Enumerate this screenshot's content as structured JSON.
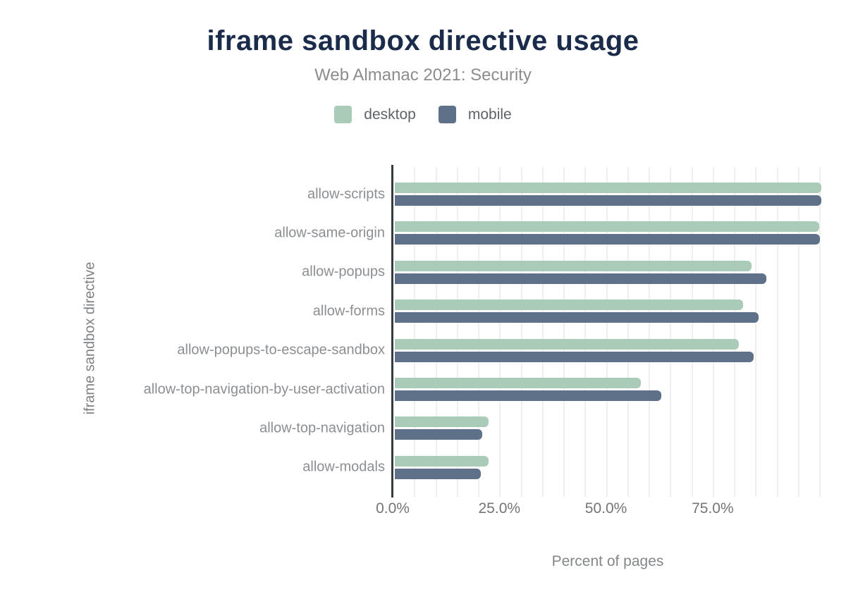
{
  "chart_data": {
    "type": "bar",
    "orientation": "horizontal",
    "title": "iframe sandbox directive usage",
    "subtitle": "Web Almanac 2021: Security",
    "xlabel": "Percent of pages",
    "ylabel": "iframe sandbox directive",
    "categories": [
      "allow-scripts",
      "allow-same-origin",
      "allow-popups",
      "allow-forms",
      "allow-popups-to-escape-sandbox",
      "allow-top-navigation-by-user-activation",
      "allow-top-navigation",
      "allow-modals"
    ],
    "series": [
      {
        "name": "desktop",
        "color": "#a9cbb7",
        "values": [
          99.9,
          99.5,
          83.6,
          81.6,
          80.7,
          57.6,
          22.0,
          21.9
        ]
      },
      {
        "name": "mobile",
        "color": "#5f7189",
        "values": [
          99.9,
          99.7,
          87.1,
          85.3,
          84.1,
          62.4,
          20.5,
          20.2
        ]
      }
    ],
    "xlim": [
      0,
      100.8
    ],
    "x_tick_values": [
      0,
      25,
      50,
      75
    ],
    "x_tick_labels": [
      "0.0%",
      "25.0%",
      "50.0%",
      "75.0%"
    ],
    "gridline_step": 5,
    "grid": true,
    "legend_position": "top",
    "value_unit": "%"
  },
  "colors": {
    "title": "#1b2b4a",
    "subtitle": "#8c8c8c",
    "axis_line": "#343a40",
    "gridline": "#efefef",
    "tick_label": "#757575",
    "category_label": "#8b8f93",
    "background": "#ffffff"
  }
}
